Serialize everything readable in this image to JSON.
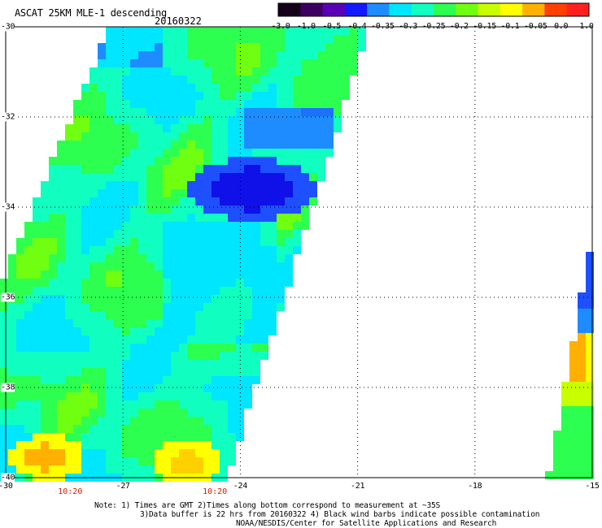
{
  "title": "ASCAT 25KM MLE-1 descending",
  "date": "20160322",
  "colorbar": {
    "ticks": [
      "-3.0",
      "-1.0",
      "-0.5",
      "-0.4",
      "-0.35",
      "-0.3",
      "-0.25",
      "-0.2",
      "-0.15",
      "-0.1",
      "-0.05",
      "0.0",
      "1.0"
    ],
    "colors": [
      "#140018",
      "#3c0060",
      "#5a00b4",
      "#1418ff",
      "#1e8cff",
      "#00e6ff",
      "#10ffc0",
      "#2cff50",
      "#70ff10",
      "#c8ff00",
      "#ffff00",
      "#ffb000",
      "#ff4000",
      "#ff2020"
    ]
  },
  "axes": {
    "lat_ticks": [
      "-30",
      "-32",
      "-34",
      "-36",
      "-38",
      "-40"
    ],
    "lon_ticks": [
      "-30",
      "-27",
      "-24",
      "-21",
      "-18",
      "-15"
    ],
    "lat_range": [
      -40,
      -30
    ],
    "lon_range": [
      -30,
      -15
    ]
  },
  "times": [
    {
      "label": "10:20",
      "lon": -28.35
    },
    {
      "label": "10:20",
      "lon": -24.65
    }
  ],
  "notes": [
    "Note: 1) Times are GMT 2)Times along bottom correspond to measurement at ~35S",
    "3)Data buffer is 22 hrs from 20160322 4) Black wind barbs indicate possible contamination",
    "NOAA/NESDIS/Center for Satellite Applications and Research"
  ],
  "colors": {
    "time_label": "#cc2200",
    "grid": "#000000"
  }
}
